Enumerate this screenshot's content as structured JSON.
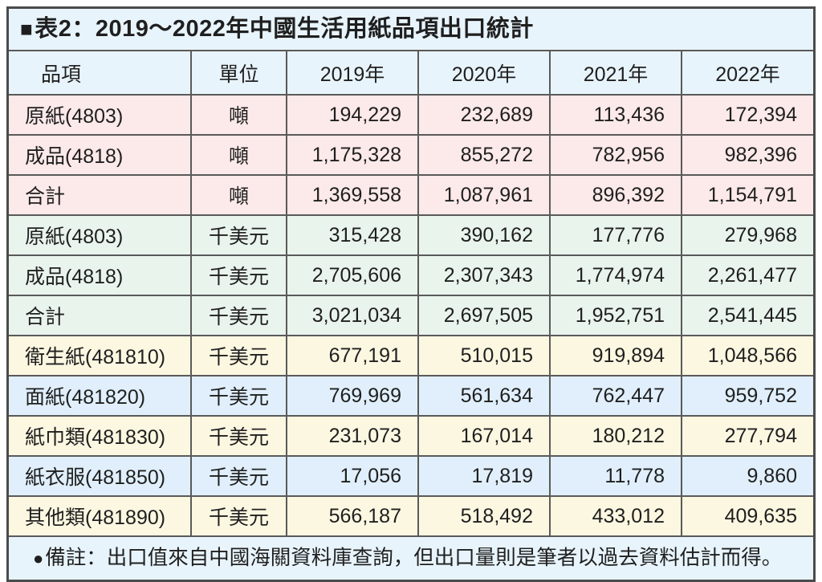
{
  "title": {
    "bullet": "■",
    "text": "表2：2019～2022年中國生活用紙品項出口統計"
  },
  "table": {
    "columns": [
      {
        "label": "品項",
        "align": "al"
      },
      {
        "label": "單位",
        "align": "ac"
      },
      {
        "label": "2019年",
        "align": "ac"
      },
      {
        "label": "2020年",
        "align": "ac"
      },
      {
        "label": "2021年",
        "align": "ac"
      },
      {
        "label": "2022年",
        "align": "ac"
      }
    ],
    "rows": [
      {
        "item": "原紙(4803)",
        "unit": "噸",
        "values": [
          "194,229",
          "232,689",
          "113,436",
          "172,394"
        ],
        "theme": "pink"
      },
      {
        "item": "成品(4818)",
        "unit": "噸",
        "values": [
          "1,175,328",
          "855,272",
          "782,956",
          "982,396"
        ],
        "theme": "pink"
      },
      {
        "item": "合計",
        "unit": "噸",
        "values": [
          "1,369,558",
          "1,087,961",
          "896,392",
          "1,154,791"
        ],
        "theme": "pink"
      },
      {
        "item": "原紙(4803)",
        "unit": "千美元",
        "values": [
          "315,428",
          "390,162",
          "177,776",
          "279,968"
        ],
        "theme": "green"
      },
      {
        "item": "成品(4818)",
        "unit": "千美元",
        "values": [
          "2,705,606",
          "2,307,343",
          "1,774,974",
          "2,261,477"
        ],
        "theme": "green"
      },
      {
        "item": "合計",
        "unit": "千美元",
        "values": [
          "3,021,034",
          "2,697,505",
          "1,952,751",
          "2,541,445"
        ],
        "theme": "green"
      },
      {
        "item": "衛生紙(481810)",
        "unit": "千美元",
        "values": [
          "677,191",
          "510,015",
          "919,894",
          "1,048,566"
        ],
        "theme": "cream"
      },
      {
        "item": "面紙(481820)",
        "unit": "千美元",
        "values": [
          "769,969",
          "561,634",
          "762,447",
          "959,752"
        ],
        "theme": "blue"
      },
      {
        "item": "紙巾類(481830)",
        "unit": "千美元",
        "values": [
          "231,073",
          "167,014",
          "180,212",
          "277,794"
        ],
        "theme": "cream"
      },
      {
        "item": "紙衣服(481850)",
        "unit": "千美元",
        "values": [
          "17,056",
          "17,819",
          "11,778",
          "9,860"
        ],
        "theme": "blue"
      },
      {
        "item": "其他類(481890)",
        "unit": "千美元",
        "values": [
          "566,187",
          "518,492",
          "433,012",
          "409,635"
        ],
        "theme": "cream"
      }
    ]
  },
  "footnote": {
    "bullet": "●",
    "text": "備註：出口值來自中國海關資料庫查詢，但出口量則是筆者以過去資料估計而得。"
  },
  "colors": {
    "header_bg": "#e8f4fc",
    "pink_bg": "#fce9e9",
    "green_bg": "#e9f4ec",
    "cream_bg": "#fcf7e1",
    "blue_bg": "#e0effb",
    "border_inner": "#5a5a5a",
    "border_outer": "#4b4b4b",
    "text": "#1f1f1f"
  },
  "chart_data": {
    "type": "table",
    "title": "表2：2019～2022年中國生活用紙品項出口統計",
    "columns": [
      "品項",
      "單位",
      "2019年",
      "2020年",
      "2021年",
      "2022年"
    ],
    "rows": [
      [
        "原紙(4803)",
        "噸",
        194229,
        232689,
        113436,
        172394
      ],
      [
        "成品(4818)",
        "噸",
        1175328,
        855272,
        782956,
        982396
      ],
      [
        "合計",
        "噸",
        1369558,
        1087961,
        896392,
        1154791
      ],
      [
        "原紙(4803)",
        "千美元",
        315428,
        390162,
        177776,
        279968
      ],
      [
        "成品(4818)",
        "千美元",
        2705606,
        2307343,
        1774974,
        2261477
      ],
      [
        "合計",
        "千美元",
        3021034,
        2697505,
        1952751,
        2541445
      ],
      [
        "衛生紙(481810)",
        "千美元",
        677191,
        510015,
        919894,
        1048566
      ],
      [
        "面紙(481820)",
        "千美元",
        769969,
        561634,
        762447,
        959752
      ],
      [
        "紙巾類(481830)",
        "千美元",
        231073,
        167014,
        180212,
        277794
      ],
      [
        "紙衣服(481850)",
        "千美元",
        17056,
        17819,
        11778,
        9860
      ],
      [
        "其他類(481890)",
        "千美元",
        566187,
        518492,
        433012,
        409635
      ]
    ],
    "note": "備註：出口值來自中國海關資料庫查詢，但出口量則是筆者以過去資料估計而得。"
  }
}
